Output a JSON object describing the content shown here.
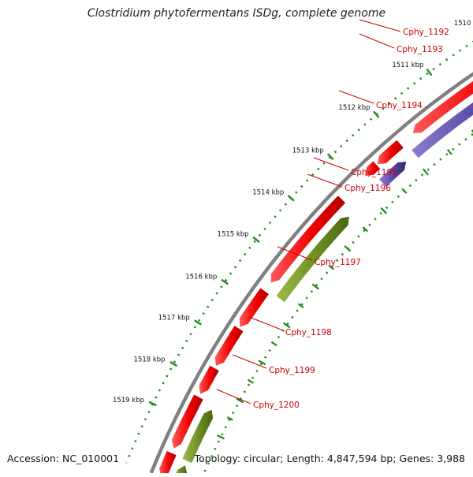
{
  "title": "Clostridium phytofermentans ISDg, complete genome",
  "footer": {
    "accession": "Accession: NC_010001",
    "summary": "Topology: circular; Length: 4,847,594 bp; Genes: 3,988"
  },
  "colors": {
    "forward_cds": "#ff0000",
    "reverse_cds_blue": "#5544a0",
    "reverse_cds_green": "#6b8e23",
    "backbone": "#808080",
    "ticks": "#1b8a1b",
    "label": "#cc0000"
  },
  "scale_ticks": [
    "1510 kbp",
    "1511 kbp",
    "1512 kbp",
    "1513 kbp",
    "1514 kbp",
    "1515 kbp",
    "1516 kbp",
    "1517 kbp",
    "1518 kbp",
    "1519 kbp"
  ],
  "gene_labels": [
    "Cphy_1192",
    "Cphy_1193",
    "Cphy_1194",
    "Cphy_1195",
    "Cphy_1196",
    "Cphy_1197",
    "Cphy_1198",
    "Cphy_1199",
    "Cphy_1200"
  ]
}
